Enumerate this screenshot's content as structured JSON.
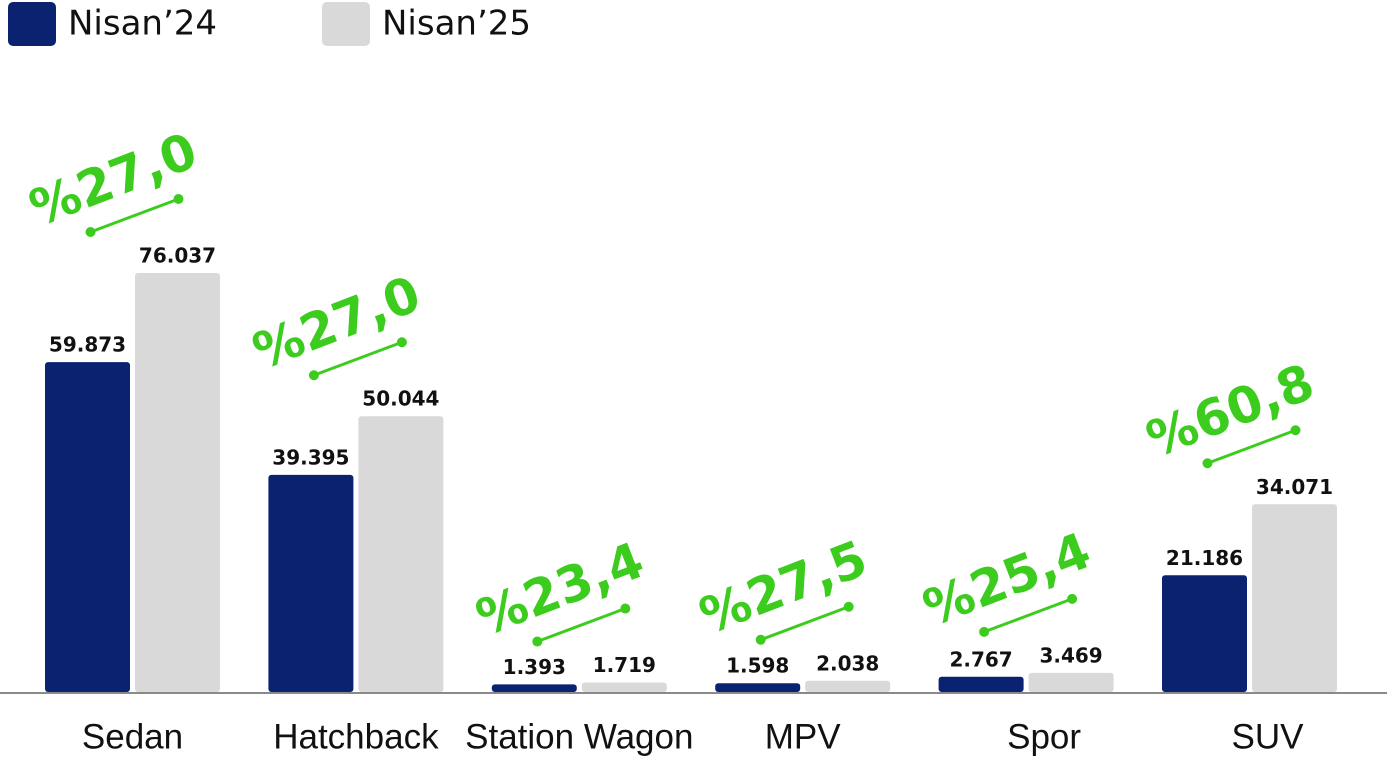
{
  "chart_data": {
    "type": "bar",
    "categories": [
      "Sedan",
      "Hatchback",
      "Station Wagon",
      "MPV",
      "Spor",
      "SUV"
    ],
    "series": [
      {
        "name": "Nisan’24",
        "color": "#0b2270",
        "values": [
          59873,
          39395,
          1393,
          1598,
          2767,
          21186
        ],
        "value_labels": [
          "59.873",
          "39.395",
          "1.393",
          "1.598",
          "2.767",
          "21.186"
        ]
      },
      {
        "name": "Nisan’25",
        "color": "#d9d9d9",
        "values": [
          76037,
          50044,
          1719,
          2038,
          3469,
          34071
        ],
        "value_labels": [
          "76.037",
          "50.044",
          "1.719",
          "2.038",
          "3.469",
          "34.071"
        ]
      }
    ],
    "annotations": [
      "%27,0",
      "%27,0",
      "%23,4",
      "%27,5",
      "%25,4",
      "%60,8"
    ],
    "legend": "top-left"
  }
}
